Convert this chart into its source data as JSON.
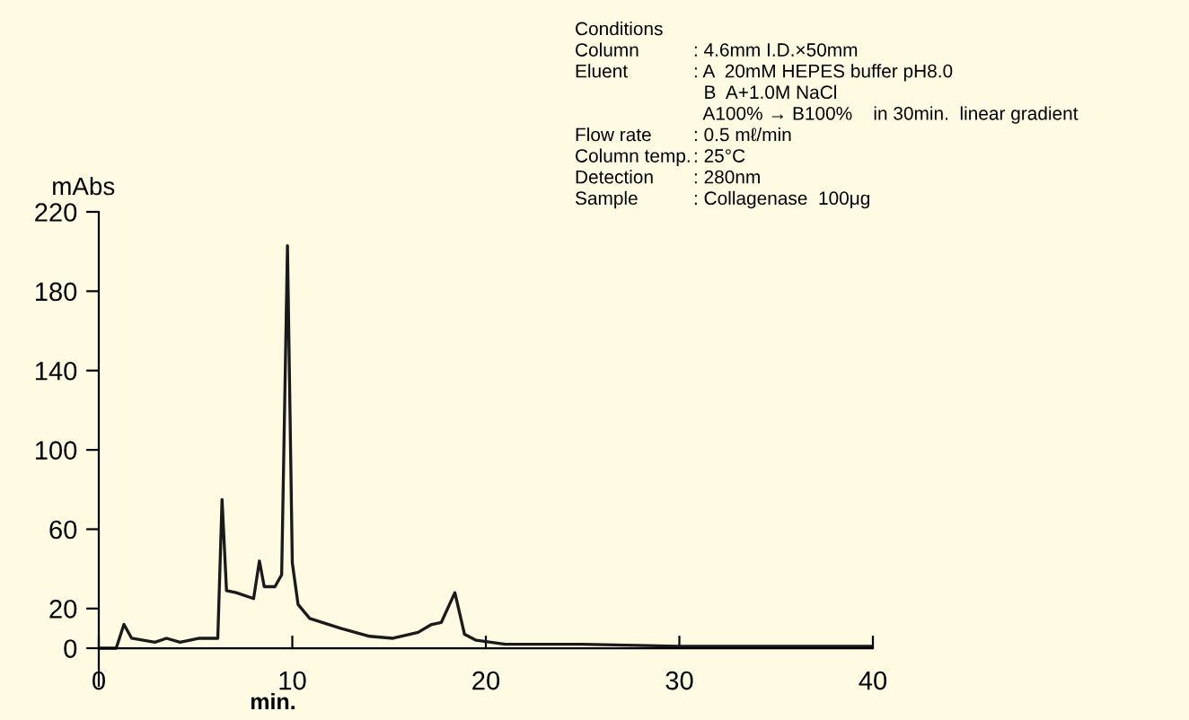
{
  "chart_data": {
    "type": "line",
    "xlabel": "min.",
    "ylabel": "mAbs",
    "x": [
      0,
      0.9,
      1.3,
      1.7,
      2.9,
      3.5,
      4.2,
      5.2,
      6.15,
      6.37,
      6.6,
      7.1,
      8.0,
      8.3,
      8.55,
      9.1,
      9.45,
      9.75,
      10.0,
      10.3,
      10.9,
      12.5,
      14.0,
      15.2,
      16.5,
      17.2,
      17.7,
      18.4,
      18.9,
      19.5,
      21,
      25,
      30,
      35,
      40
    ],
    "series": [
      {
        "color": "#1a1a1a",
        "values": [
          0,
          0,
          12,
          5,
          3,
          5,
          3,
          5,
          5,
          75,
          29,
          28,
          25,
          44,
          31,
          31,
          37,
          203,
          43,
          22,
          15,
          10,
          6,
          5,
          8,
          12,
          13,
          28,
          7,
          4,
          2,
          2,
          1,
          1,
          1
        ]
      }
    ],
    "xlim": [
      0,
      40
    ],
    "xticks": [
      0,
      10,
      20,
      30,
      40
    ],
    "ylim": [
      -19,
      220
    ],
    "yticks": [
      0,
      20,
      60,
      100,
      140,
      180,
      220
    ],
    "grid": false,
    "legend": false,
    "marker": "none",
    "line_style": "solid",
    "annotations": [
      "Conditions",
      "Column\t: 4.6mm I.D.×50mm",
      "Eluent\t: A  20mM HEPES buffer pH8.0",
      "\t  B  A+1.0M NaCl",
      "\t  A100% → B100%    in 30min.  linear gradient",
      "Flow rate\t: 0.5 mℓ/min",
      "Column temp.\t: 25°C",
      "Detection\t: 280nm",
      "Sample\t: Collagenase  100μg"
    ]
  }
}
